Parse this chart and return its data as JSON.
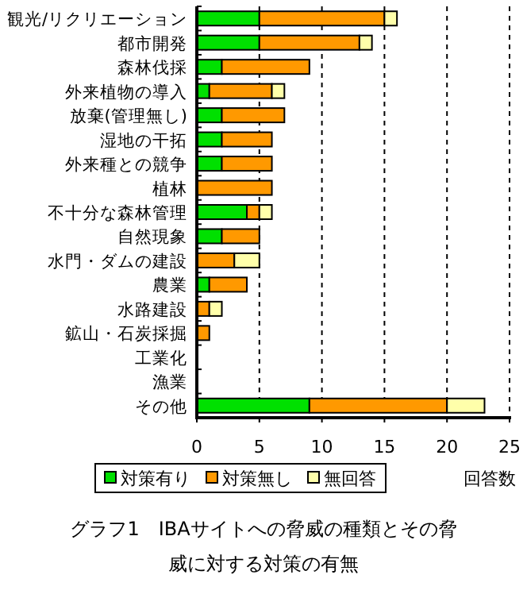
{
  "chart_data": {
    "type": "bar",
    "orientation": "horizontal",
    "stacked": true,
    "title": "グラフ1　IBAサイトへの脅威の種類とその脅威に対する対策の有無",
    "xlabel": "回答数",
    "categories": [
      "観光/リクリエーション",
      "都市開発",
      "森林伐採",
      "外来植物の導入",
      "放棄(管理無し)",
      "湿地の干拓",
      "外来種との競争",
      "植林",
      "不十分な森林管理",
      "自然現象",
      "水門・ダムの建設",
      "農業",
      "水路建設",
      "鉱山・石炭採掘",
      "工業化",
      "漁業",
      "その他"
    ],
    "series": [
      {
        "name": "対策有り",
        "color": "#00e000",
        "values": [
          5,
          5,
          2,
          1,
          2,
          2,
          2,
          0,
          4,
          2,
          0,
          1,
          0,
          0,
          0,
          0,
          9
        ]
      },
      {
        "name": "対策無し",
        "color": "#ff9900",
        "values": [
          10,
          8,
          7,
          5,
          5,
          4,
          4,
          6,
          1,
          3,
          3,
          3,
          1,
          1,
          0,
          0,
          11
        ]
      },
      {
        "name": "無回答",
        "color": "#ffffaa",
        "values": [
          1,
          1,
          0,
          1,
          0,
          0,
          0,
          0,
          1,
          0,
          2,
          0,
          1,
          0,
          0,
          0,
          3
        ]
      }
    ],
    "xlim": [
      0,
      25
    ],
    "xticks": [
      0,
      5,
      10,
      15,
      20,
      25
    ],
    "grid": "x",
    "legend": "bottom"
  }
}
